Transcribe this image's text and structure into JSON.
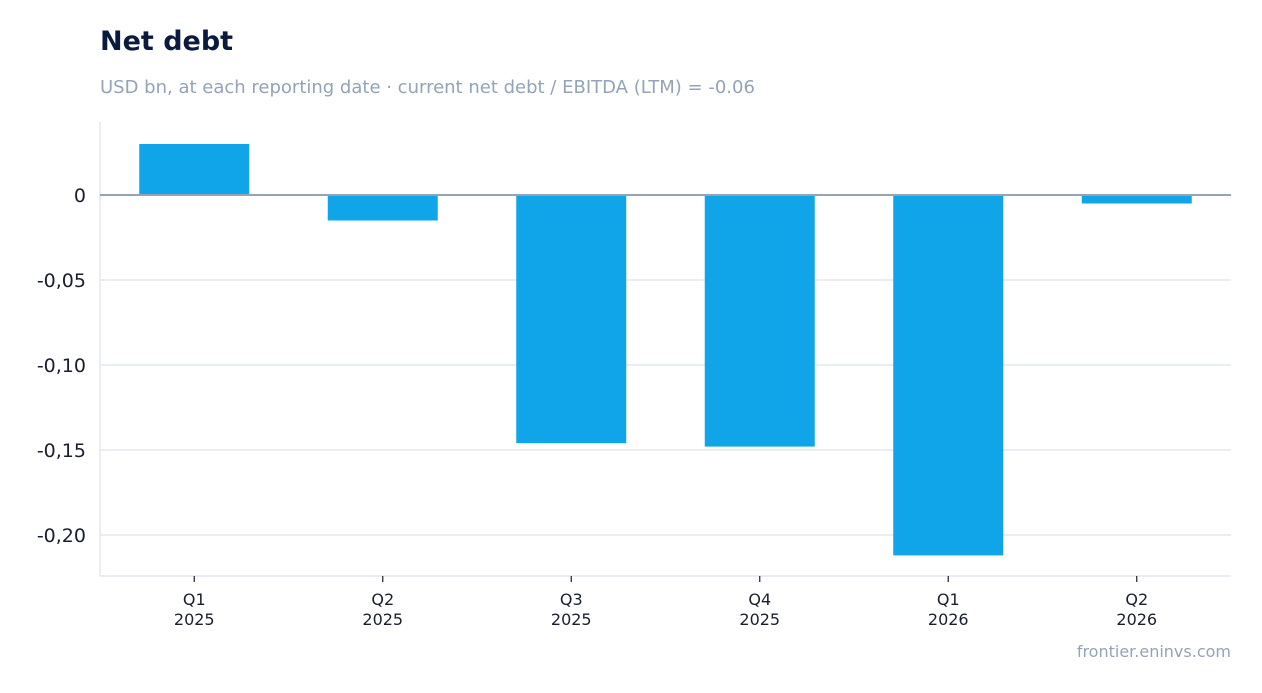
{
  "header": {
    "title": "Net debt",
    "subtitle": "USD bn, at each reporting date · current net debt / EBITDA (LTM) = -0.06"
  },
  "footer": {
    "source": "frontier.eninvs.com"
  },
  "colors": {
    "bar": "#10a5e8",
    "grid": "#e3e8f0",
    "zero_line": "#94a3b8",
    "axis": "#e3e8f0"
  },
  "chart_data": {
    "type": "bar",
    "categories": [
      [
        "Q1",
        "2025"
      ],
      [
        "Q2",
        "2025"
      ],
      [
        "Q3",
        "2025"
      ],
      [
        "Q4",
        "2025"
      ],
      [
        "Q1",
        "2026"
      ],
      [
        "Q2",
        "2026"
      ]
    ],
    "values": [
      0.03,
      -0.015,
      -0.146,
      -0.148,
      -0.212,
      -0.005
    ],
    "ylim": [
      -0.225,
      0.042
    ],
    "yticks": [
      0,
      -0.05,
      -0.1,
      -0.15,
      -0.2
    ],
    "ytick_labels": [
      "0",
      "-0,05",
      "-0,10",
      "-0,15",
      "-0,20"
    ],
    "grid": true,
    "legend": "none"
  }
}
